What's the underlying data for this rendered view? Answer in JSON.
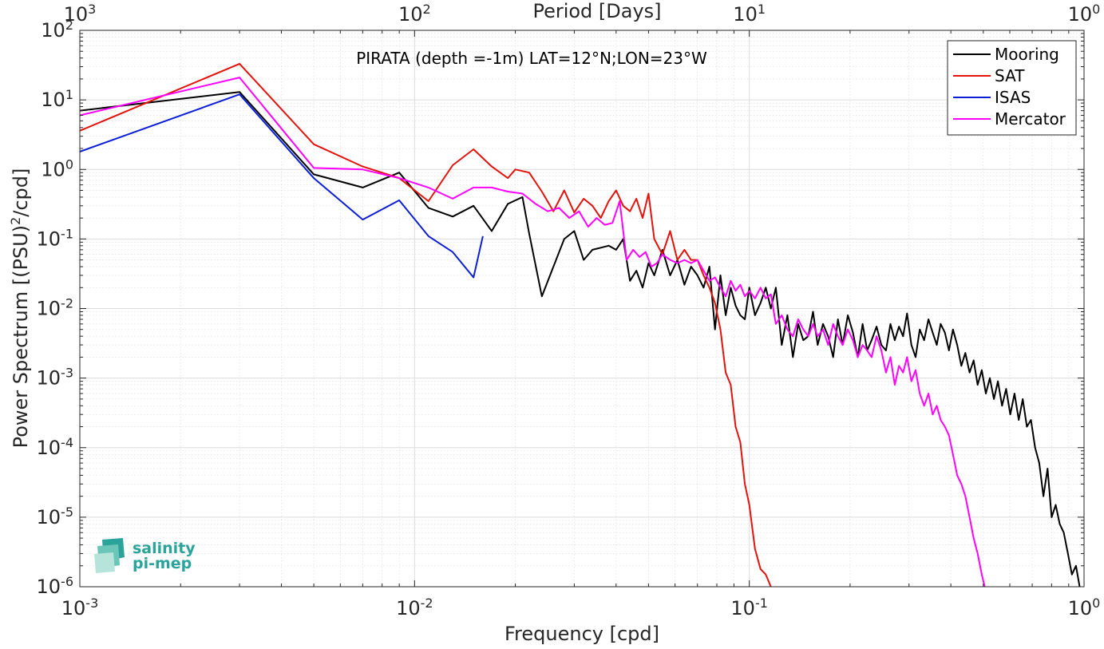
{
  "chart_data": {
    "type": "line",
    "title": "PIRATA (depth =-1m) LAT=12°N;LON=23°W",
    "xlabel": "Frequency [cpd]",
    "ylabel_main": "Power Spectrum [(PSU)",
    "ylabel_sup": "2",
    "ylabel_tail": "/cpd]",
    "top_xlabel": "Period [Days]",
    "xscale": "log",
    "yscale": "log",
    "xlim": [
      0.001,
      1
    ],
    "ylim": [
      1e-06,
      100
    ],
    "grid": true,
    "minor_grid": true,
    "legend_position": "top-right",
    "x_ticks": [
      {
        "base": "10",
        "exp": "-3"
      },
      {
        "base": "10",
        "exp": "-2"
      },
      {
        "base": "10",
        "exp": "-1"
      },
      {
        "base": "10",
        "exp": "0"
      }
    ],
    "y_ticks": [
      {
        "base": "10",
        "exp": "-6"
      },
      {
        "base": "10",
        "exp": "-5"
      },
      {
        "base": "10",
        "exp": "-4"
      },
      {
        "base": "10",
        "exp": "-3"
      },
      {
        "base": "10",
        "exp": "-2"
      },
      {
        "base": "10",
        "exp": "-1"
      },
      {
        "base": "10",
        "exp": "0"
      },
      {
        "base": "10",
        "exp": "1"
      },
      {
        "base": "10",
        "exp": "2"
      }
    ],
    "top_ticks": [
      {
        "base": "10",
        "exp": "3"
      },
      {
        "base": "10",
        "exp": "2"
      },
      {
        "base": "10",
        "exp": "1"
      },
      {
        "base": "10",
        "exp": "0"
      }
    ],
    "series": [
      {
        "name": "Mooring",
        "color": "#000000",
        "points": [
          [
            0.001,
            7
          ],
          [
            0.003,
            13
          ],
          [
            0.005,
            0.85
          ],
          [
            0.007,
            0.55
          ],
          [
            0.009,
            0.9
          ],
          [
            0.011,
            0.28
          ],
          [
            0.013,
            0.21
          ],
          [
            0.015,
            0.3
          ],
          [
            0.017,
            0.13
          ],
          [
            0.019,
            0.32
          ],
          [
            0.021,
            0.4
          ],
          [
            0.022,
            0.12
          ],
          [
            0.024,
            0.015
          ],
          [
            0.026,
            0.04
          ],
          [
            0.028,
            0.1
          ],
          [
            0.03,
            0.13
          ],
          [
            0.032,
            0.05
          ],
          [
            0.034,
            0.07
          ],
          [
            0.036,
            0.075
          ],
          [
            0.038,
            0.08
          ],
          [
            0.04,
            0.07
          ],
          [
            0.042,
            0.1
          ],
          [
            0.044,
            0.025
          ],
          [
            0.046,
            0.035
          ],
          [
            0.048,
            0.02
          ],
          [
            0.05,
            0.045
          ],
          [
            0.052,
            0.03
          ],
          [
            0.055,
            0.07
          ],
          [
            0.058,
            0.03
          ],
          [
            0.061,
            0.05
          ],
          [
            0.064,
            0.022
          ],
          [
            0.067,
            0.04
          ],
          [
            0.07,
            0.03
          ],
          [
            0.073,
            0.02
          ],
          [
            0.076,
            0.04
          ],
          [
            0.079,
            0.005
          ],
          [
            0.082,
            0.03
          ],
          [
            0.085,
            0.008
          ],
          [
            0.088,
            0.02
          ],
          [
            0.091,
            0.011
          ],
          [
            0.094,
            0.008
          ],
          [
            0.097,
            0.007
          ],
          [
            0.1,
            0.02
          ],
          [
            0.104,
            0.008
          ],
          [
            0.108,
            0.012
          ],
          [
            0.112,
            0.02
          ],
          [
            0.116,
            0.01
          ],
          [
            0.12,
            0.02
          ],
          [
            0.125,
            0.003
          ],
          [
            0.13,
            0.008
          ],
          [
            0.135,
            0.002
          ],
          [
            0.14,
            0.006
          ],
          [
            0.145,
            0.0035
          ],
          [
            0.15,
            0.004
          ],
          [
            0.155,
            0.009
          ],
          [
            0.16,
            0.003
          ],
          [
            0.166,
            0.006
          ],
          [
            0.172,
            0.004
          ],
          [
            0.178,
            0.002
          ],
          [
            0.184,
            0.007
          ],
          [
            0.19,
            0.003
          ],
          [
            0.197,
            0.008
          ],
          [
            0.204,
            0.0045
          ],
          [
            0.211,
            0.002
          ],
          [
            0.218,
            0.006
          ],
          [
            0.225,
            0.0025
          ],
          [
            0.232,
            0.0035
          ],
          [
            0.24,
            0.0055
          ],
          [
            0.248,
            0.003
          ],
          [
            0.256,
            0.0025
          ],
          [
            0.264,
            0.006
          ],
          [
            0.272,
            0.0035
          ],
          [
            0.28,
            0.0055
          ],
          [
            0.288,
            0.004
          ],
          [
            0.296,
            0.0085
          ],
          [
            0.305,
            0.003
          ],
          [
            0.314,
            0.002
          ],
          [
            0.323,
            0.005
          ],
          [
            0.333,
            0.0035
          ],
          [
            0.343,
            0.007
          ],
          [
            0.353,
            0.0045
          ],
          [
            0.363,
            0.003
          ],
          [
            0.373,
            0.006
          ],
          [
            0.384,
            0.0045
          ],
          [
            0.395,
            0.0025
          ],
          [
            0.406,
            0.005
          ],
          [
            0.418,
            0.003
          ],
          [
            0.43,
            0.0015
          ],
          [
            0.442,
            0.0023
          ],
          [
            0.455,
            0.0012
          ],
          [
            0.468,
            0.0018
          ],
          [
            0.481,
            0.0008
          ],
          [
            0.495,
            0.0013
          ],
          [
            0.509,
            0.0006
          ],
          [
            0.523,
            0.001
          ],
          [
            0.538,
            0.0005
          ],
          [
            0.553,
            0.0009
          ],
          [
            0.569,
            0.0004
          ],
          [
            0.585,
            0.0007
          ],
          [
            0.602,
            0.0003
          ],
          [
            0.62,
            0.0006
          ],
          [
            0.638,
            0.00025
          ],
          [
            0.656,
            0.0005
          ],
          [
            0.675,
            0.0002
          ],
          [
            0.694,
            0.00025
          ],
          [
            0.714,
            0.0001
          ],
          [
            0.735,
            6e-05
          ],
          [
            0.756,
            2e-05
          ],
          [
            0.778,
            5e-05
          ],
          [
            0.8,
            1e-05
          ],
          [
            0.823,
            1.5e-05
          ],
          [
            0.846,
            8e-06
          ],
          [
            0.87,
            6e-06
          ],
          [
            0.895,
            3e-06
          ],
          [
            0.92,
            1.5e-06
          ],
          [
            0.946,
            2e-06
          ],
          [
            0.97,
            1e-06
          ]
        ]
      },
      {
        "name": "SAT",
        "color": "#e3120b",
        "points": [
          [
            0.001,
            3.6
          ],
          [
            0.003,
            33
          ],
          [
            0.005,
            2.3
          ],
          [
            0.007,
            1.1
          ],
          [
            0.009,
            0.75
          ],
          [
            0.011,
            0.35
          ],
          [
            0.013,
            1.15
          ],
          [
            0.015,
            1.95
          ],
          [
            0.017,
            1.1
          ],
          [
            0.019,
            0.75
          ],
          [
            0.02,
            1
          ],
          [
            0.022,
            0.9
          ],
          [
            0.024,
            0.48
          ],
          [
            0.026,
            0.25
          ],
          [
            0.028,
            0.5
          ],
          [
            0.03,
            0.24
          ],
          [
            0.032,
            0.38
          ],
          [
            0.034,
            0.3
          ],
          [
            0.036,
            0.2
          ],
          [
            0.038,
            0.35
          ],
          [
            0.04,
            0.5
          ],
          [
            0.042,
            0.3
          ],
          [
            0.044,
            0.25
          ],
          [
            0.046,
            0.38
          ],
          [
            0.048,
            0.2
          ],
          [
            0.05,
            0.45
          ],
          [
            0.052,
            0.1
          ],
          [
            0.055,
            0.06
          ],
          [
            0.058,
            0.13
          ],
          [
            0.061,
            0.05
          ],
          [
            0.064,
            0.07
          ],
          [
            0.067,
            0.05
          ],
          [
            0.07,
            0.05
          ],
          [
            0.073,
            0.03
          ],
          [
            0.076,
            0.02
          ],
          [
            0.079,
            0.012
          ],
          [
            0.082,
            0.005
          ],
          [
            0.085,
            0.0012
          ],
          [
            0.088,
            0.0008
          ],
          [
            0.091,
            0.0002
          ],
          [
            0.094,
            0.00012
          ],
          [
            0.097,
            3e-05
          ],
          [
            0.1,
            1.5e-05
          ],
          [
            0.104,
            3.5e-06
          ],
          [
            0.108,
            1.8e-06
          ],
          [
            0.112,
            1.5e-06
          ],
          [
            0.116,
            1e-06
          ]
        ]
      },
      {
        "name": "ISAS",
        "color": "#0b1fd6",
        "points": [
          [
            0.001,
            1.8
          ],
          [
            0.003,
            12
          ],
          [
            0.005,
            0.75
          ],
          [
            0.007,
            0.19
          ],
          [
            0.009,
            0.36
          ],
          [
            0.011,
            0.11
          ],
          [
            0.013,
            0.065
          ],
          [
            0.015,
            0.028
          ],
          [
            0.016,
            0.11
          ]
        ]
      },
      {
        "name": "Mercator",
        "color": "#ff00ff",
        "points": [
          [
            0.001,
            6
          ],
          [
            0.003,
            21
          ],
          [
            0.005,
            1.05
          ],
          [
            0.007,
            1.0
          ],
          [
            0.009,
            0.75
          ],
          [
            0.011,
            0.55
          ],
          [
            0.013,
            0.38
          ],
          [
            0.015,
            0.55
          ],
          [
            0.017,
            0.55
          ],
          [
            0.019,
            0.48
          ],
          [
            0.021,
            0.45
          ],
          [
            0.023,
            0.32
          ],
          [
            0.025,
            0.25
          ],
          [
            0.027,
            0.28
          ],
          [
            0.029,
            0.2
          ],
          [
            0.031,
            0.25
          ],
          [
            0.033,
            0.15
          ],
          [
            0.035,
            0.2
          ],
          [
            0.037,
            0.16
          ],
          [
            0.039,
            0.17
          ],
          [
            0.041,
            0.35
          ],
          [
            0.043,
            0.05
          ],
          [
            0.045,
            0.07
          ],
          [
            0.047,
            0.055
          ],
          [
            0.049,
            0.065
          ],
          [
            0.051,
            0.04
          ],
          [
            0.053,
            0.045
          ],
          [
            0.055,
            0.06
          ],
          [
            0.058,
            0.05
          ],
          [
            0.061,
            0.045
          ],
          [
            0.064,
            0.05
          ],
          [
            0.067,
            0.045
          ],
          [
            0.07,
            0.05
          ],
          [
            0.073,
            0.035
          ],
          [
            0.076,
            0.025
          ],
          [
            0.079,
            0.028
          ],
          [
            0.082,
            0.02
          ],
          [
            0.085,
            0.015
          ],
          [
            0.088,
            0.025
          ],
          [
            0.091,
            0.018
          ],
          [
            0.094,
            0.022
          ],
          [
            0.097,
            0.015
          ],
          [
            0.1,
            0.018
          ],
          [
            0.104,
            0.014
          ],
          [
            0.108,
            0.02
          ],
          [
            0.112,
            0.014
          ],
          [
            0.116,
            0.016
          ],
          [
            0.12,
            0.006
          ],
          [
            0.125,
            0.008
          ],
          [
            0.13,
            0.005
          ],
          [
            0.135,
            0.004
          ],
          [
            0.14,
            0.007
          ],
          [
            0.145,
            0.005
          ],
          [
            0.15,
            0.004
          ],
          [
            0.155,
            0.006
          ],
          [
            0.16,
            0.004
          ],
          [
            0.166,
            0.005
          ],
          [
            0.172,
            0.003
          ],
          [
            0.178,
            0.006
          ],
          [
            0.184,
            0.004
          ],
          [
            0.19,
            0.003
          ],
          [
            0.197,
            0.005
          ],
          [
            0.204,
            0.0035
          ],
          [
            0.211,
            0.002
          ],
          [
            0.218,
            0.003
          ],
          [
            0.225,
            0.0025
          ],
          [
            0.232,
            0.002
          ],
          [
            0.24,
            0.004
          ],
          [
            0.248,
            0.0025
          ],
          [
            0.256,
            0.0012
          ],
          [
            0.264,
            0.002
          ],
          [
            0.272,
            0.0008
          ],
          [
            0.28,
            0.0015
          ],
          [
            0.288,
            0.0012
          ],
          [
            0.296,
            0.002
          ],
          [
            0.305,
            0.0009
          ],
          [
            0.314,
            0.0013
          ],
          [
            0.323,
            0.0006
          ],
          [
            0.333,
            0.0004
          ],
          [
            0.343,
            0.0006
          ],
          [
            0.353,
            0.0003
          ],
          [
            0.363,
            0.0004
          ],
          [
            0.373,
            0.00025
          ],
          [
            0.384,
            0.0002
          ],
          [
            0.395,
            0.00015
          ],
          [
            0.406,
            8e-05
          ],
          [
            0.418,
            4e-05
          ],
          [
            0.43,
            3e-05
          ],
          [
            0.442,
            2e-05
          ],
          [
            0.455,
            1e-05
          ],
          [
            0.468,
            5e-06
          ],
          [
            0.481,
            3e-06
          ],
          [
            0.495,
            1.5e-06
          ],
          [
            0.505,
            1e-06
          ]
        ]
      }
    ]
  }
}
